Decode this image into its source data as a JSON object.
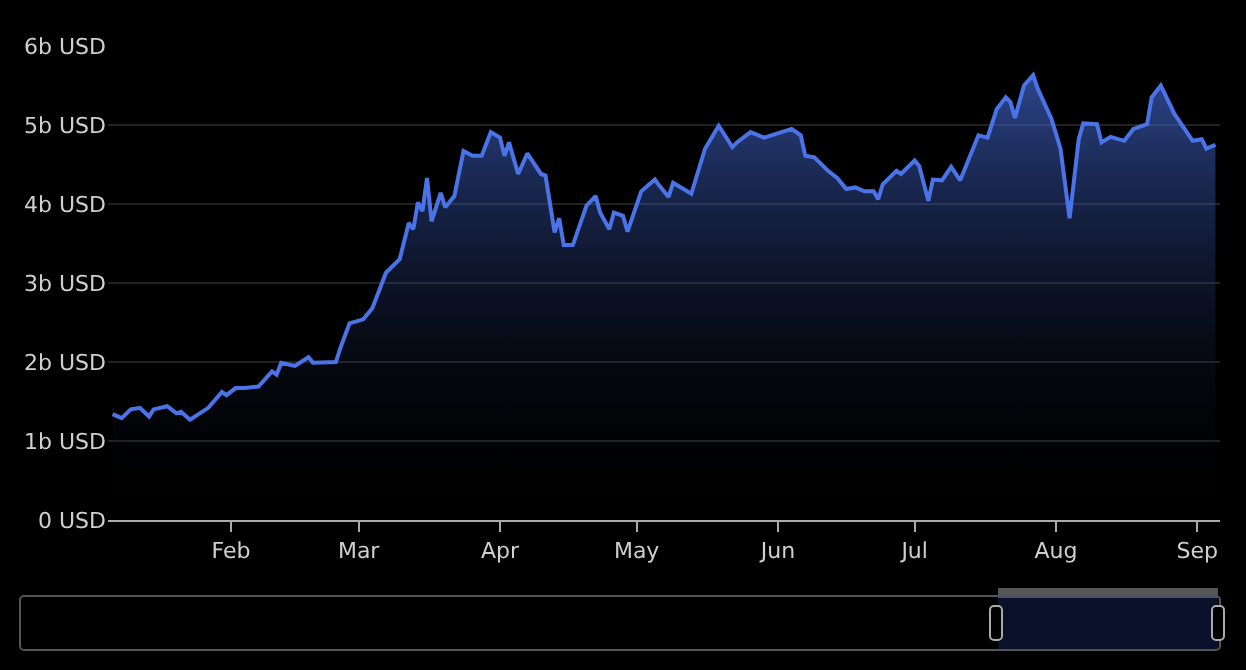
{
  "chart_data": {
    "type": "area",
    "x": [
      "--01-06",
      "--01-08",
      "--01-10",
      "--01-12",
      "--01-14",
      "--01-15",
      "--01-18",
      "--01-20",
      "--01-21",
      "--01-23",
      "--01-27",
      "--01-30",
      "--01-31",
      "--02-02",
      "--02-04",
      "--02-07",
      "--02-10",
      "--02-11",
      "--02-12",
      "--02-15",
      "--02-18",
      "--02-19",
      "--02-24",
      "--02-25",
      "--02-27",
      "--03-02",
      "--03-04",
      "--03-07",
      "--03-10",
      "--03-12",
      "--03-13",
      "--03-14",
      "--03-15",
      "--03-16",
      "--03-17",
      "--03-19",
      "--03-20",
      "--03-22",
      "--03-24",
      "--03-26",
      "--03-28",
      "--03-30",
      "--04-01",
      "--04-02",
      "--04-03",
      "--04-05",
      "--04-07",
      "--04-10",
      "--04-11",
      "--04-13",
      "--04-14",
      "--04-15",
      "--04-17",
      "--04-20",
      "--04-22",
      "--04-23",
      "--04-25",
      "--04-26",
      "--04-28",
      "--04-29",
      "--05-02",
      "--05-05",
      "--05-06",
      "--05-08",
      "--05-09",
      "--05-13",
      "--05-16",
      "--05-19",
      "--05-22",
      "--05-23",
      "--05-26",
      "--05-29",
      "--06-04",
      "--06-06",
      "--06-07",
      "--06-09",
      "--06-12",
      "--06-14",
      "--06-16",
      "--06-18",
      "--06-20",
      "--06-22",
      "--06-23",
      "--06-24",
      "--06-27",
      "--06-28",
      "--07-01",
      "--07-02",
      "--07-04",
      "--07-05",
      "--07-07",
      "--07-09",
      "--07-11",
      "--07-15",
      "--07-17",
      "--07-19",
      "--07-21",
      "--07-22",
      "--07-23",
      "--07-25",
      "--07-27",
      "--07-28",
      "--07-31",
      "--08-02",
      "--08-04",
      "--08-06",
      "--08-07",
      "--08-10",
      "--08-11",
      "--08-13",
      "--08-16",
      "--08-18",
      "--08-21",
      "--08-22",
      "--08-24",
      "--08-27",
      "--08-31",
      "--09-02",
      "--09-03",
      "--09-05"
    ],
    "series": [
      {
        "color": "#4a73e8",
        "values": [
          1.34,
          1.29,
          1.4,
          1.42,
          1.31,
          1.4,
          1.44,
          1.35,
          1.37,
          1.27,
          1.42,
          1.62,
          1.58,
          1.67,
          1.67,
          1.69,
          1.88,
          1.84,
          1.99,
          1.95,
          2.06,
          1.99,
          2.0,
          2.18,
          2.49,
          2.54,
          2.68,
          3.13,
          3.3,
          3.76,
          3.68,
          4.02,
          3.91,
          4.33,
          3.78,
          4.14,
          3.96,
          4.1,
          4.67,
          4.61,
          4.61,
          4.91,
          4.84,
          4.61,
          4.78,
          4.38,
          4.64,
          4.38,
          4.36,
          3.64,
          3.82,
          3.48,
          3.48,
          3.98,
          4.1,
          3.89,
          3.68,
          3.89,
          3.85,
          3.65,
          4.16,
          4.31,
          4.23,
          4.09,
          4.27,
          4.13,
          4.7,
          4.99,
          4.72,
          4.78,
          4.91,
          4.84,
          4.95,
          4.87,
          4.61,
          4.59,
          4.42,
          4.33,
          4.19,
          4.21,
          4.16,
          4.16,
          4.06,
          4.25,
          4.42,
          4.38,
          4.55,
          4.48,
          4.04,
          4.31,
          4.3,
          4.47,
          4.3,
          4.87,
          4.84,
          5.2,
          5.35,
          5.29,
          5.09,
          5.5,
          5.63,
          5.46,
          5.08,
          4.7,
          3.82,
          4.82,
          5.02,
          5.01,
          4.78,
          4.85,
          4.8,
          4.95,
          5.01,
          5.35,
          5.5,
          5.14,
          4.8,
          4.82,
          4.7,
          4.75
        ]
      }
    ],
    "xlim": [
      "--01-05",
      "--09-06"
    ],
    "xticks": [
      {
        "value": "--02-01",
        "label": "Feb"
      },
      {
        "value": "--03-01",
        "label": "Mar"
      },
      {
        "value": "--04-01",
        "label": "Apr"
      },
      {
        "value": "--05-01",
        "label": "May"
      },
      {
        "value": "--06-01",
        "label": "Jun"
      },
      {
        "value": "--07-01",
        "label": "Jul"
      },
      {
        "value": "--08-01",
        "label": "Aug"
      },
      {
        "value": "--09-01",
        "label": "Sep"
      }
    ],
    "ylim": [
      0,
      6
    ],
    "yticks": [
      {
        "value": 0,
        "label": "0 USD"
      },
      {
        "value": 1,
        "label": "1b USD"
      },
      {
        "value": 2,
        "label": "2b USD"
      },
      {
        "value": 3,
        "label": "3b USD"
      },
      {
        "value": 4,
        "label": "4b USD"
      },
      {
        "value": 5,
        "label": "5b USD"
      },
      {
        "value": 6,
        "label": "6b USD"
      }
    ],
    "grid": "y"
  }
}
